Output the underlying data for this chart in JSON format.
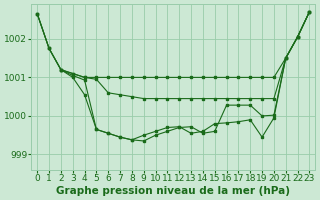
{
  "bg_color": "#cce8d4",
  "grid_color": "#99ccaa",
  "line_color": "#1a6b1a",
  "marker_color": "#1a6b1a",
  "xlabel": "Graphe pression niveau de la mer (hPa)",
  "xlabel_fontsize": 7.5,
  "tick_fontsize": 6.5,
  "ylim": [
    998.6,
    1002.9
  ],
  "xlim": [
    -0.5,
    23.5
  ],
  "yticks": [
    999,
    1000,
    1001,
    1002
  ],
  "xticks": [
    0,
    1,
    2,
    3,
    4,
    5,
    6,
    7,
    8,
    9,
    10,
    11,
    12,
    13,
    14,
    15,
    16,
    17,
    18,
    19,
    20,
    21,
    22,
    23
  ],
  "series": [
    {
      "x": [
        0,
        1,
        2,
        3,
        4,
        5,
        6,
        7,
        8,
        9,
        10,
        11,
        12,
        13,
        14,
        15,
        16,
        17,
        18,
        19,
        20,
        21,
        22,
        23
      ],
      "y": [
        1002.65,
        1001.75,
        1001.2,
        1001.1,
        1001.0,
        1001.0,
        1001.0,
        1001.0,
        1001.0,
        1001.0,
        1001.0,
        1001.0,
        1001.0,
        1001.0,
        1001.0,
        1001.0,
        1001.0,
        1001.0,
        1001.0,
        1001.0,
        1001.0,
        1001.5,
        1002.05,
        1002.7
      ]
    },
    {
      "x": [
        0,
        1,
        2,
        3,
        4,
        5,
        6,
        7,
        8,
        9,
        10,
        11,
        12,
        13,
        14,
        15,
        16,
        17,
        18,
        19,
        20,
        21,
        22,
        23
      ],
      "y": [
        1002.65,
        1001.75,
        1001.2,
        1001.1,
        1001.0,
        1000.95,
        1000.6,
        1000.55,
        1000.5,
        1000.45,
        1000.45,
        1000.45,
        1000.45,
        1000.45,
        1000.45,
        1000.45,
        1000.45,
        1000.45,
        1000.45,
        1000.45,
        1000.45,
        1001.5,
        1002.05,
        1002.7
      ]
    },
    {
      "x": [
        0,
        1,
        2,
        3,
        4,
        5,
        6,
        7,
        8,
        9,
        10,
        11,
        12,
        13,
        14,
        15,
        16,
        17,
        18,
        19,
        20,
        21,
        22,
        23
      ],
      "y": [
        1002.65,
        1001.75,
        1001.2,
        1001.05,
        1000.93,
        999.65,
        999.55,
        999.45,
        999.38,
        999.5,
        999.6,
        999.7,
        999.72,
        999.55,
        999.6,
        999.8,
        999.82,
        999.85,
        999.9,
        999.45,
        999.95,
        1001.5,
        1002.05,
        1002.7
      ]
    },
    {
      "x": [
        2,
        3,
        4,
        5,
        6,
        7,
        8,
        9,
        10,
        11,
        12,
        13,
        14,
        15,
        16,
        17,
        18,
        19,
        20,
        21,
        22,
        23
      ],
      "y": [
        1001.2,
        1001.0,
        1000.55,
        999.65,
        999.55,
        999.45,
        999.38,
        999.35,
        999.5,
        999.6,
        999.7,
        999.72,
        999.55,
        999.6,
        1000.28,
        1000.28,
        1000.28,
        1000.0,
        1000.02,
        1001.5,
        1002.05,
        1002.7
      ]
    }
  ]
}
